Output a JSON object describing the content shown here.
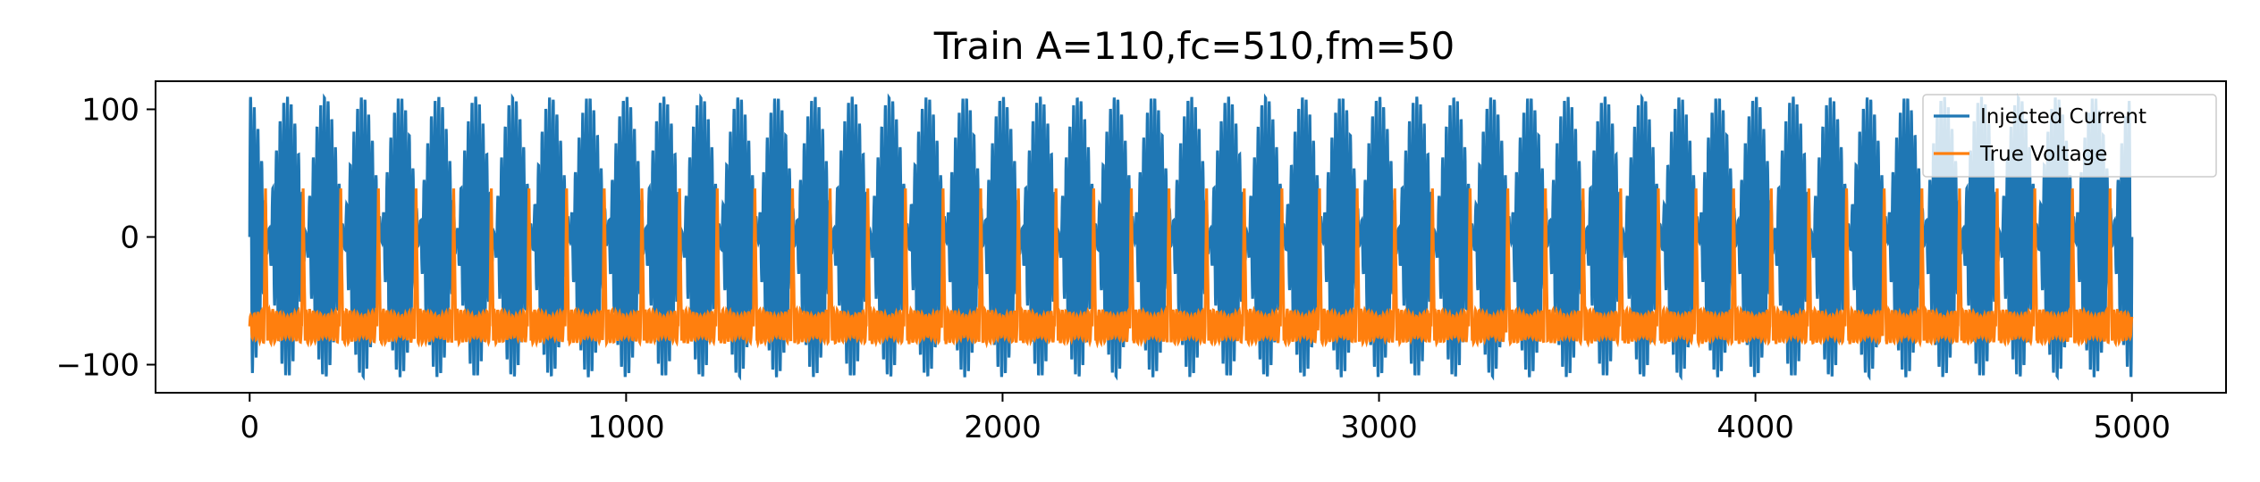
{
  "chart_data": {
    "type": "line",
    "title": "Train A=110,fc=510,fm=50",
    "xlabel": "",
    "ylabel": "",
    "xlim": [
      -250,
      5250
    ],
    "ylim": [
      -122,
      122
    ],
    "xticks": [
      0,
      1000,
      2000,
      3000,
      4000,
      5000
    ],
    "yticks": [
      -100,
      0,
      100
    ],
    "xtick_labels": [
      "0",
      "1000",
      "2000",
      "3000",
      "4000",
      "5000"
    ],
    "ytick_labels": [
      "−100",
      "0",
      "100"
    ],
    "grid": false,
    "legend": {
      "placement": "top-right",
      "entries": [
        "Injected Current",
        "True Voltage"
      ]
    },
    "series": [
      {
        "name": "Injected Current",
        "color": "#1f77b4",
        "x_range": [
          0,
          5000
        ],
        "amplitude": 110,
        "carrier_hz": 510,
        "modulation_hz": 50,
        "period_x": 100,
        "y_min": -110,
        "y_max": 110
      },
      {
        "name": "True Voltage",
        "color": "#ff7f0e",
        "x_range": [
          0,
          5000
        ],
        "baseline": -70,
        "y_min": -92,
        "y_max": 38,
        "spike_peak": 38,
        "spike_period_x": 100
      }
    ]
  }
}
